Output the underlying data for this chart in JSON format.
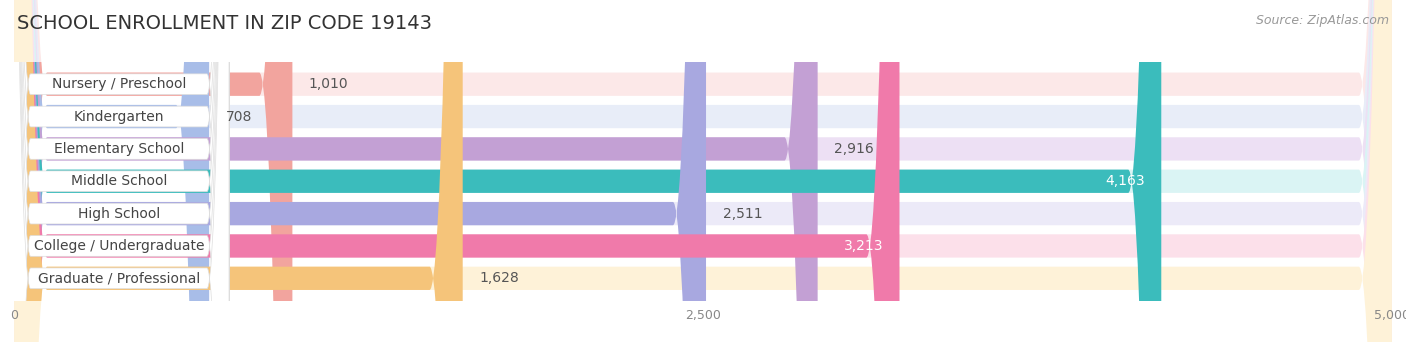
{
  "title": "SCHOOL ENROLLMENT IN ZIP CODE 19143",
  "source": "Source: ZipAtlas.com",
  "categories": [
    "Nursery / Preschool",
    "Kindergarten",
    "Elementary School",
    "Middle School",
    "High School",
    "College / Undergraduate",
    "Graduate / Professional"
  ],
  "values": [
    1010,
    708,
    2916,
    4163,
    2511,
    3213,
    1628
  ],
  "bar_colors": [
    "#f2a49e",
    "#a8bde8",
    "#c3a0d4",
    "#3bbcbc",
    "#a8a8e0",
    "#f07aaa",
    "#f5c47a"
  ],
  "bar_bg_colors": [
    "#fce8e8",
    "#e8edf8",
    "#ede0f4",
    "#daf4f4",
    "#eceaf8",
    "#fce0ea",
    "#fef2d8"
  ],
  "xlim": [
    0,
    5000
  ],
  "xticks": [
    0,
    2500,
    5000
  ],
  "xtick_labels": [
    "0",
    "2,500",
    "5,000"
  ],
  "title_fontsize": 14,
  "source_fontsize": 9,
  "label_fontsize": 10,
  "value_fontsize": 10,
  "background_color": "#ffffff"
}
